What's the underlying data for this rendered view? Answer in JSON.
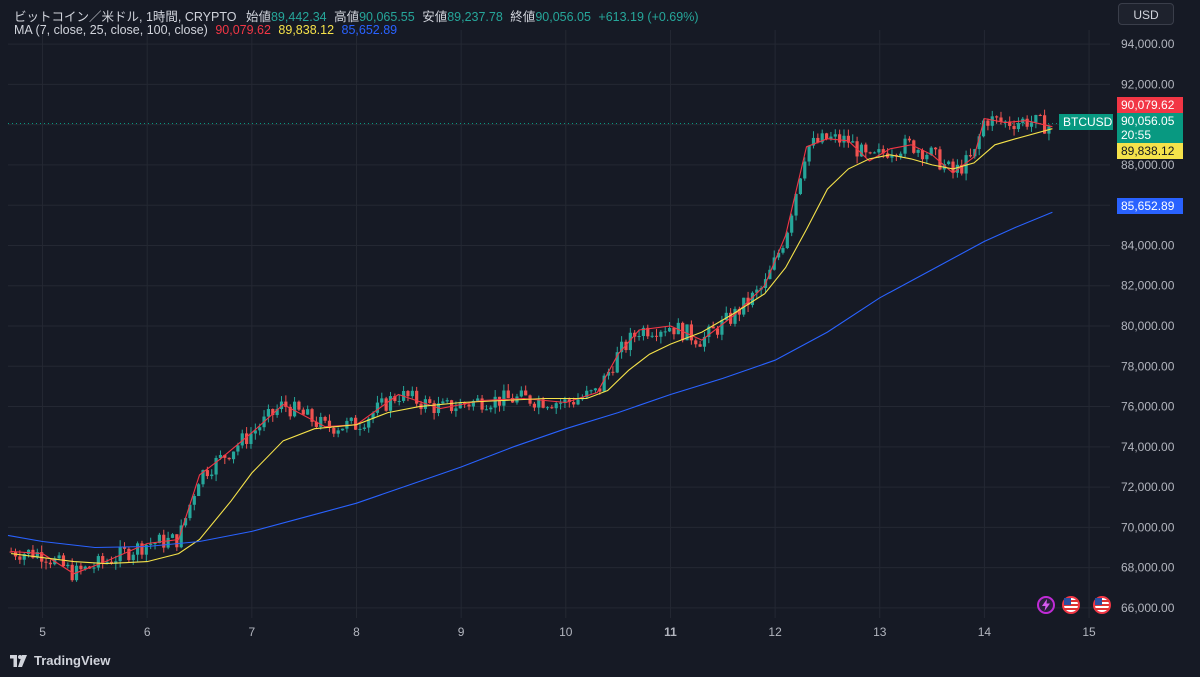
{
  "header": {
    "title": "ビットコイン／米ドル, 1時間, CRYPTO",
    "ohlc": [
      {
        "label": "始値",
        "value": "89,442.34"
      },
      {
        "label": "高値",
        "value": "90,065.55"
      },
      {
        "label": "安値",
        "value": "89,237.78"
      },
      {
        "label": "終値",
        "value": "90,056.05"
      }
    ],
    "change": "+613.19 (+0.69%)"
  },
  "ma_legend": {
    "label": "MA (7, close, 25, close, 100, close)",
    "values": [
      "90,079.62",
      "89,838.12",
      "85,652.89"
    ]
  },
  "currency_button": "USD",
  "brand": "TradingView",
  "price_tags": {
    "symbol": "BTCUSD",
    "last": "90,056.05",
    "countdown": "20:55",
    "ma7": "90,079.62",
    "ma25": "89,838.12",
    "ma100": "85,652.89"
  },
  "colors": {
    "background": "#161a25",
    "up": "#26a69a",
    "down": "#ef5350",
    "ma7": "#f23645",
    "ma25": "#f5e24a",
    "ma100": "#2962ff",
    "grid": "#242833",
    "text": "#d1d4dc"
  },
  "chart_data": {
    "type": "line",
    "title": "ビットコイン／米ドル, 1時間, CRYPTO",
    "y_ticks": [
      "66,000.00",
      "68,000.00",
      "70,000.00",
      "72,000.00",
      "74,000.00",
      "76,000.00",
      "78,000.00",
      "80,000.00",
      "82,000.00",
      "84,000.00",
      "86,000.00",
      "88,000.00",
      "90,000.00",
      "92,000.00",
      "94,000.00"
    ],
    "x_ticks": [
      "5",
      "6",
      "7",
      "8",
      "9",
      "10",
      "11",
      "12",
      "13",
      "14",
      "15"
    ],
    "ylim": [
      65500,
      94700
    ],
    "xlim": [
      4.67,
      15.2
    ],
    "grid": true,
    "series": [
      {
        "name": "MA 7",
        "x": [
          4.7,
          5.0,
          5.3,
          5.6,
          6.0,
          6.3,
          6.5,
          6.7,
          7.0,
          7.3,
          7.7,
          8.0,
          8.4,
          8.8,
          9.2,
          9.6,
          10.0,
          10.3,
          10.5,
          10.7,
          11.0,
          11.3,
          11.6,
          11.9,
          12.1,
          12.3,
          12.5,
          12.7,
          12.9,
          13.1,
          13.3,
          13.5,
          13.7,
          13.9,
          14.0,
          14.2,
          14.4,
          14.65
        ],
        "values": [
          68800,
          68700,
          67700,
          68300,
          69200,
          69400,
          72600,
          73400,
          74700,
          76100,
          75000,
          75100,
          76600,
          75900,
          76300,
          76400,
          76200,
          76700,
          78600,
          79800,
          80000,
          79300,
          80500,
          82000,
          84500,
          88900,
          89300,
          89200,
          88200,
          88800,
          89000,
          88500,
          87600,
          88400,
          90300,
          90100,
          90200,
          89900
        ]
      },
      {
        "name": "MA 25",
        "x": [
          4.7,
          5.0,
          5.3,
          5.6,
          6.0,
          6.3,
          6.5,
          6.8,
          7.0,
          7.3,
          7.6,
          8.0,
          8.3,
          8.6,
          9.0,
          9.4,
          9.8,
          10.2,
          10.4,
          10.6,
          10.8,
          11.0,
          11.3,
          11.6,
          11.9,
          12.1,
          12.3,
          12.5,
          12.7,
          12.9,
          13.1,
          13.3,
          13.5,
          13.7,
          13.9,
          14.1,
          14.3,
          14.65
        ],
        "values": [
          68700,
          68500,
          68300,
          68200,
          68300,
          68700,
          69400,
          71300,
          72700,
          74300,
          74900,
          75100,
          75700,
          76000,
          76200,
          76300,
          76400,
          76400,
          76800,
          77800,
          78600,
          79100,
          79700,
          80600,
          81600,
          82900,
          84800,
          86800,
          87800,
          88300,
          88500,
          88300,
          88000,
          87800,
          88100,
          89000,
          89300,
          89800
        ]
      },
      {
        "name": "MA 100",
        "x": [
          4.67,
          5.0,
          5.5,
          6.0,
          6.5,
          7.0,
          7.5,
          8.0,
          8.5,
          9.0,
          9.5,
          10.0,
          10.5,
          11.0,
          11.5,
          12.0,
          12.5,
          13.0,
          13.5,
          14.0,
          14.3,
          14.65
        ],
        "values": [
          69600,
          69300,
          69000,
          69050,
          69300,
          69800,
          70500,
          71200,
          72100,
          73000,
          74000,
          74900,
          75700,
          76600,
          77400,
          78300,
          79700,
          81400,
          82800,
          84200,
          84900,
          85650
        ]
      }
    ]
  }
}
